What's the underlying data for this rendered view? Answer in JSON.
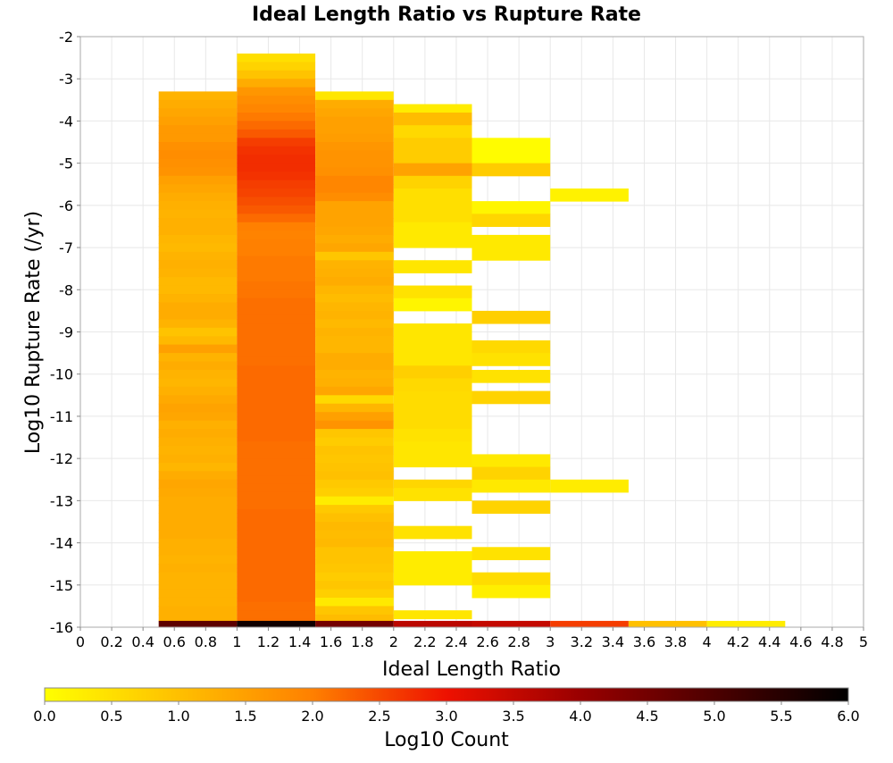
{
  "chart_data": {
    "type": "heatmap",
    "title": "Ideal Length Ratio vs Rupture Rate",
    "xlabel": "Ideal Length Ratio",
    "ylabel": "Log10 Rupture Rate (/yr)",
    "xlim": [
      0,
      5
    ],
    "ylim": [
      -16,
      -2
    ],
    "x_ticks": [
      "0",
      "0.2",
      "0.4",
      "0.6",
      "0.8",
      "1",
      "1.2",
      "1.4",
      "1.6",
      "1.8",
      "2",
      "2.2",
      "2.4",
      "2.6",
      "2.8",
      "3",
      "3.2",
      "3.4",
      "3.6",
      "3.8",
      "4",
      "4.2",
      "4.4",
      "4.6",
      "4.8",
      "5"
    ],
    "y_ticks": [
      "-2",
      "-3",
      "-4",
      "-5",
      "-6",
      "-7",
      "-8",
      "-9",
      "-10",
      "-11",
      "-12",
      "-13",
      "-14",
      "-15",
      "-16"
    ],
    "x_bin_width": 0.5,
    "y_bin_height": 0.2,
    "grid": true,
    "colorbar": {
      "label": "Log10 Count",
      "range": [
        0,
        6
      ],
      "ticks": [
        "0.0",
        "0.5",
        "1.0",
        "1.5",
        "2.0",
        "2.5",
        "3.0",
        "3.5",
        "4.0",
        "4.5",
        "5.0",
        "5.5",
        "6.0"
      ],
      "stops": [
        {
          "v": 0.0,
          "color": "#ffff00"
        },
        {
          "v": 2.0,
          "color": "#ff8000"
        },
        {
          "v": 3.0,
          "color": "#ee1100"
        },
        {
          "v": 4.0,
          "color": "#990000"
        },
        {
          "v": 6.0,
          "color": "#000000"
        }
      ]
    },
    "columns": [
      {
        "x0": 0.5,
        "x1": 1.0,
        "y_top": -3.3,
        "values": [
          1.2,
          1.3,
          1.4,
          1.5,
          1.6,
          1.6,
          1.75,
          1.8,
          1.75,
          1.7,
          1.5,
          1.4,
          1.3,
          1.25,
          1.2,
          1.25,
          1.25,
          1.15,
          1.1,
          1.2,
          1.25,
          1.2,
          1.1,
          1.1,
          1.2,
          1.3,
          1.3,
          1.2,
          0.95,
          1.1,
          1.5,
          1.2,
          1.3,
          1.2,
          1.15,
          1.25,
          1.35,
          1.45,
          1.4,
          1.25,
          1.3,
          1.25,
          1.2,
          1.25,
          1.15,
          1.3,
          1.4,
          1.35,
          1.3,
          1.3,
          1.3,
          1.3,
          1.3,
          1.25,
          1.25,
          1.2,
          1.25,
          1.2,
          1.2,
          1.2,
          1.2,
          1.25,
          1.25
        ],
        "bottom_value": 4.8
      },
      {
        "x0": 1.0,
        "x1": 1.5,
        "y_top": -2.4,
        "values": [
          0.5,
          0.7,
          0.95,
          1.3,
          1.65,
          1.8,
          1.9,
          2.05,
          2.2,
          2.35,
          2.6,
          2.7,
          2.75,
          2.75,
          2.7,
          2.6,
          2.55,
          2.45,
          2.35,
          2.2,
          2.0,
          1.95,
          2.0,
          2.0,
          2.05,
          2.05,
          2.05,
          2.1,
          2.1,
          2.15,
          2.15,
          2.15,
          2.15,
          2.15,
          2.15,
          2.15,
          2.15,
          2.2,
          2.2,
          2.2,
          2.2,
          2.2,
          2.2,
          2.2,
          2.2,
          2.2,
          2.15,
          2.15,
          2.15,
          2.15,
          2.15,
          2.15,
          2.15,
          2.15,
          2.2,
          2.2,
          2.2,
          2.2,
          2.2,
          2.2,
          2.2,
          2.2,
          2.2,
          2.2,
          2.2,
          2.15,
          2.15,
          2.15
        ],
        "bottom_value": 5.8
      },
      {
        "x0": 1.5,
        "x1": 2.0,
        "y_top": -3.3,
        "values": [
          0.4,
          1.3,
          1.4,
          1.5,
          1.5,
          1.55,
          1.65,
          1.7,
          1.7,
          1.75,
          1.9,
          1.9,
          1.8,
          1.45,
          1.45,
          1.45,
          1.4,
          1.3,
          1.4,
          0.9,
          1.2,
          1.25,
          1.3,
          1.15,
          1.05,
          1.15,
          1.2,
          1.1,
          1.2,
          1.15,
          1.15,
          1.3,
          1.3,
          1.2,
          1.25,
          1.4,
          0.6,
          1.15,
          1.5,
          1.7,
          0.9,
          0.8,
          0.95,
          0.9,
          0.95,
          1.0,
          0.85,
          0.75,
          0.3,
          0.85,
          1.0,
          1.1,
          1.05,
          1.1,
          0.95,
          0.95,
          0.9,
          0.8,
          0.9,
          0.75,
          0.35,
          0.9,
          1.05
        ],
        "bottom_value": 4.5
      },
      {
        "x0": 2.0,
        "x1": 2.5,
        "rows": [
          {
            "y0": -3.8,
            "y1": -3.6,
            "v": 0.3
          },
          {
            "y0": -4.1,
            "y1": -3.8,
            "v": 1.05
          },
          {
            "y0": -4.4,
            "y1": -4.1,
            "v": 0.6
          },
          {
            "y0": -5.0,
            "y1": -4.4,
            "v": 0.8
          },
          {
            "y0": -5.3,
            "y1": -5.0,
            "v": 1.45
          },
          {
            "y0": -5.6,
            "y1": -5.3,
            "v": 0.7
          },
          {
            "y0": -6.4,
            "y1": -5.6,
            "v": 0.5
          },
          {
            "y0": -7.0,
            "y1": -6.4,
            "v": 0.35
          },
          {
            "y0": -7.6,
            "y1": -7.3,
            "v": 0.4
          },
          {
            "y0": -8.2,
            "y1": -7.9,
            "v": 0.45
          },
          {
            "y0": -8.5,
            "y1": -8.2,
            "v": 0.15
          },
          {
            "y0": -9.8,
            "y1": -8.8,
            "v": 0.4
          },
          {
            "y0": -10.1,
            "y1": -9.8,
            "v": 0.75
          },
          {
            "y0": -10.4,
            "y1": -10.1,
            "v": 0.6
          },
          {
            "y0": -11.3,
            "y1": -10.4,
            "v": 0.55
          },
          {
            "y0": -11.6,
            "y1": -11.3,
            "v": 0.45
          },
          {
            "y0": -12.2,
            "y1": -11.6,
            "v": 0.4
          },
          {
            "y0": -12.7,
            "y1": -12.5,
            "v": 0.65
          },
          {
            "y0": -13.0,
            "y1": -12.7,
            "v": 0.45
          },
          {
            "y0": -13.9,
            "y1": -13.6,
            "v": 0.45
          },
          {
            "y0": -15.0,
            "y1": -14.2,
            "v": 0.3
          },
          {
            "y0": -15.8,
            "y1": -15.6,
            "v": 0.4
          }
        ],
        "bottom_value": 3.6
      },
      {
        "x0": 2.5,
        "x1": 3.0,
        "rows": [
          {
            "y0": -5.0,
            "y1": -4.4,
            "v": 0.05
          },
          {
            "y0": -5.3,
            "y1": -5.0,
            "v": 0.8
          },
          {
            "y0": -6.2,
            "y1": -5.9,
            "v": 0.15
          },
          {
            "y0": -6.5,
            "y1": -6.2,
            "v": 0.65
          },
          {
            "y0": -7.3,
            "y1": -6.7,
            "v": 0.35
          },
          {
            "y0": -8.8,
            "y1": -8.5,
            "v": 0.75
          },
          {
            "y0": -9.5,
            "y1": -9.2,
            "v": 0.6
          },
          {
            "y0": -9.8,
            "y1": -9.5,
            "v": 0.45
          },
          {
            "y0": -10.2,
            "y1": -9.9,
            "v": 0.45
          },
          {
            "y0": -10.7,
            "y1": -10.4,
            "v": 0.7
          },
          {
            "y0": -12.2,
            "y1": -11.9,
            "v": 0.35
          },
          {
            "y0": -12.5,
            "y1": -12.2,
            "v": 0.7
          },
          {
            "y0": -12.8,
            "y1": -12.5,
            "v": 0.35
          },
          {
            "y0": -13.3,
            "y1": -13.0,
            "v": 0.7
          },
          {
            "y0": -14.4,
            "y1": -14.1,
            "v": 0.45
          },
          {
            "y0": -15.0,
            "y1": -14.7,
            "v": 0.55
          },
          {
            "y0": -15.3,
            "y1": -15.0,
            "v": 0.25
          }
        ],
        "bottom_value": 3.5
      },
      {
        "x0": 3.0,
        "x1": 3.5,
        "rows": [
          {
            "y0": -5.9,
            "y1": -5.6,
            "v": 0.2
          },
          {
            "y0": -12.8,
            "y1": -12.5,
            "v": 0.3
          }
        ],
        "bottom_value": 2.6
      },
      {
        "x0": 3.5,
        "x1": 4.0,
        "rows": [],
        "bottom_value": 1.0
      },
      {
        "x0": 4.0,
        "x1": 4.5,
        "rows": [],
        "bottom_value": 0.3
      }
    ],
    "bottom_row": {
      "y0": -16.0,
      "y1": -15.85
    }
  }
}
